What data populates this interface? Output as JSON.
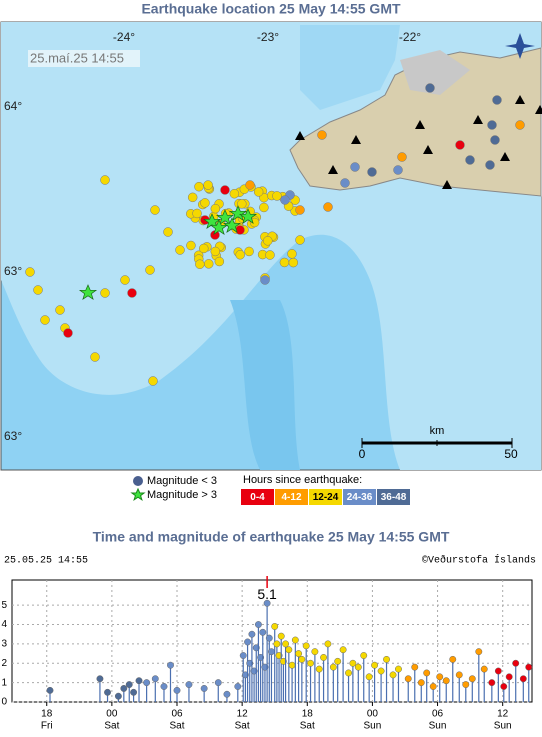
{
  "map": {
    "title": "Earthquake location   25 May 14:55 GMT",
    "timestamp": "25.maí.25  14:55",
    "lon_labels": [
      "-24°",
      "-23°",
      "-22°"
    ],
    "lat_labels": [
      "64°",
      "63°",
      "63°"
    ],
    "scale": {
      "unit": "km",
      "start": "0",
      "end": "50"
    },
    "legend": {
      "small": "Magnitude < 3",
      "large": "Magnitude > 3",
      "hours_title": "Hours since earthquake:"
    }
  },
  "chart_data": {
    "type": "scatter",
    "title": "Time and magnitude of earthquake   25 May 14:55 GMT",
    "timestamp": "25.05.25 14:55",
    "credit": "©Veðurstofa Íslands",
    "xlim": [
      -3.2,
      44.7
    ],
    "ylim": [
      0,
      6.3
    ],
    "yticks": [
      0,
      1,
      2,
      3,
      4,
      5
    ],
    "xticks": [
      {
        "value": 0,
        "label": "18"
      },
      {
        "value": 6,
        "label": "00"
      },
      {
        "value": 12,
        "label": "06"
      },
      {
        "value": 18,
        "label": "12"
      },
      {
        "value": 24,
        "label": "18"
      },
      {
        "value": 30,
        "label": "00"
      },
      {
        "value": 36,
        "label": "06"
      },
      {
        "value": 42,
        "label": "12"
      }
    ],
    "xtick_days": [
      "Fri",
      "Sat",
      "Sat",
      "Sat",
      "Sat",
      "Sun",
      "Sun",
      "Sun"
    ],
    "annotation": {
      "x": 20.3,
      "value": 5.1,
      "label": "5.1"
    },
    "series": [
      {
        "name": "0-4",
        "color": "#e8000f",
        "x": [
          41.0,
          41.6,
          42.1,
          42.6,
          43.2,
          43.9,
          44.4
        ],
        "values": [
          1.0,
          1.6,
          0.8,
          1.3,
          2.0,
          1.2,
          1.8
        ]
      },
      {
        "name": "4-12",
        "color": "#ff9c00",
        "x": [
          33.3,
          33.9,
          34.5,
          35.0,
          35.6,
          36.2,
          36.8,
          37.4,
          38.0,
          38.6,
          39.2,
          39.8,
          40.3
        ],
        "values": [
          1.2,
          1.8,
          1.0,
          1.5,
          0.8,
          1.3,
          1.1,
          2.2,
          1.4,
          0.9,
          1.2,
          2.6,
          1.7
        ]
      },
      {
        "name": "12-24",
        "color": "#f5d800",
        "x": [
          21.0,
          21.2,
          21.4,
          21.6,
          21.8,
          22.0,
          22.3,
          22.6,
          22.9,
          23.2,
          23.5,
          23.9,
          24.3,
          24.7,
          25.1,
          25.5,
          25.9,
          26.4,
          26.8,
          27.3,
          27.8,
          28.2,
          28.7,
          29.2,
          29.7,
          30.2,
          30.8,
          31.3,
          31.9,
          32.4
        ],
        "values": [
          3.9,
          3.0,
          2.4,
          3.4,
          2.1,
          3.0,
          2.7,
          1.9,
          3.2,
          2.5,
          2.2,
          2.9,
          2.0,
          2.6,
          1.7,
          2.3,
          3.0,
          1.8,
          2.1,
          2.7,
          1.5,
          2.0,
          1.8,
          2.4,
          1.3,
          1.9,
          1.6,
          2.2,
          1.4,
          1.7
        ]
      },
      {
        "name": "24-36",
        "color": "#6a8dc8",
        "x": [
          9.2,
          10.0,
          10.8,
          11.4,
          12.0,
          13.1,
          14.5,
          15.8,
          16.6,
          17.6,
          18.1,
          18.3,
          18.5,
          18.7,
          18.9,
          19.1,
          19.3,
          19.5,
          19.7,
          19.9,
          20.1,
          20.3,
          20.5,
          20.7
        ],
        "values": [
          1.0,
          1.2,
          0.8,
          1.9,
          0.6,
          0.9,
          0.7,
          1.0,
          0.4,
          0.8,
          2.4,
          1.4,
          3.1,
          2.0,
          3.5,
          1.6,
          2.8,
          4.0,
          2.3,
          3.6,
          1.8,
          5.1,
          3.3,
          2.6
        ]
      },
      {
        "name": "36-48",
        "color": "#4f6b95",
        "x": [
          0.3,
          4.9,
          5.6,
          6.6,
          7.1,
          7.6,
          8.0,
          8.5
        ],
        "values": [
          0.6,
          1.2,
          0.5,
          0.3,
          0.7,
          0.9,
          0.5,
          1.1
        ]
      }
    ]
  }
}
